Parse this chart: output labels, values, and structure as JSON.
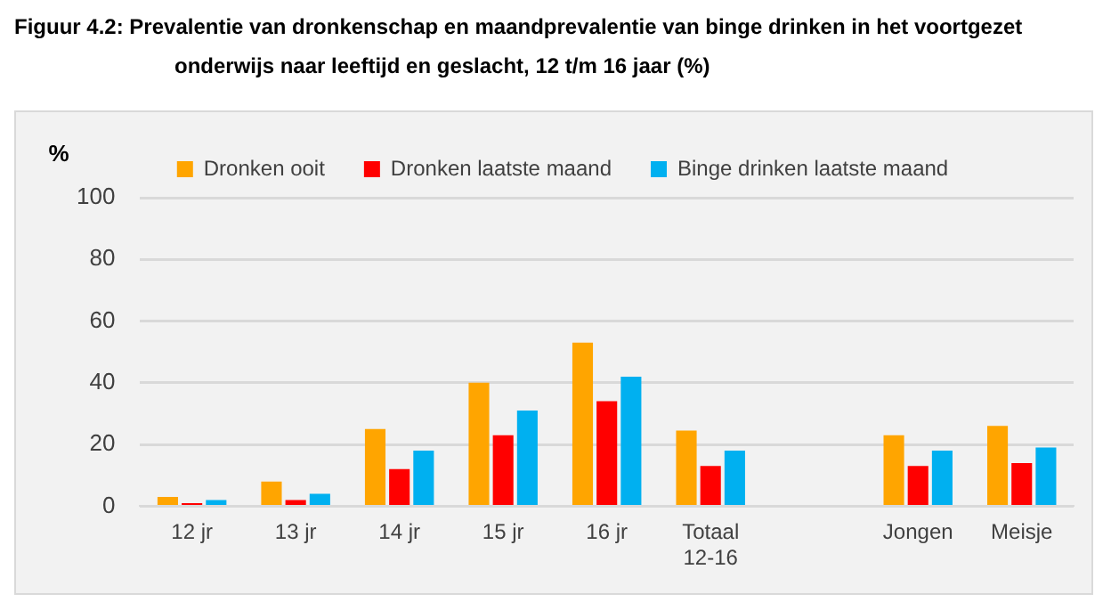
{
  "chart_data": {
    "type": "bar",
    "title": "Figuur 4.2: Prevalentie van dronkenschap en maandprevalentie van binge drinken in het voortgezet onderwijs naar leeftijd en geslacht, 12 t/m 16 jaar (%)",
    "ylabel": "%",
    "categories": [
      "12 jr",
      "13 jr",
      "14 jr",
      "15 jr",
      "16 jr",
      "Totaal 12-16",
      null,
      "Jongen",
      "Meisje"
    ],
    "series": [
      {
        "name": "Dronken ooit",
        "color": "#ffa500",
        "values": [
          3,
          8,
          25,
          40,
          53,
          24.5,
          null,
          23,
          26
        ]
      },
      {
        "name": "Dronken laatste maand",
        "color": "#ff0000",
        "values": [
          1,
          2,
          12,
          23,
          34,
          13,
          null,
          13,
          14
        ]
      },
      {
        "name": "Binge drinken laatste maand",
        "color": "#00b0f0",
        "values": [
          2,
          4,
          18,
          31,
          42,
          18,
          null,
          18,
          19
        ]
      }
    ],
    "ylim": [
      0,
      100
    ],
    "yticks": [
      0,
      20,
      40,
      60,
      80,
      100
    ],
    "grid": "y",
    "legend": "top"
  }
}
